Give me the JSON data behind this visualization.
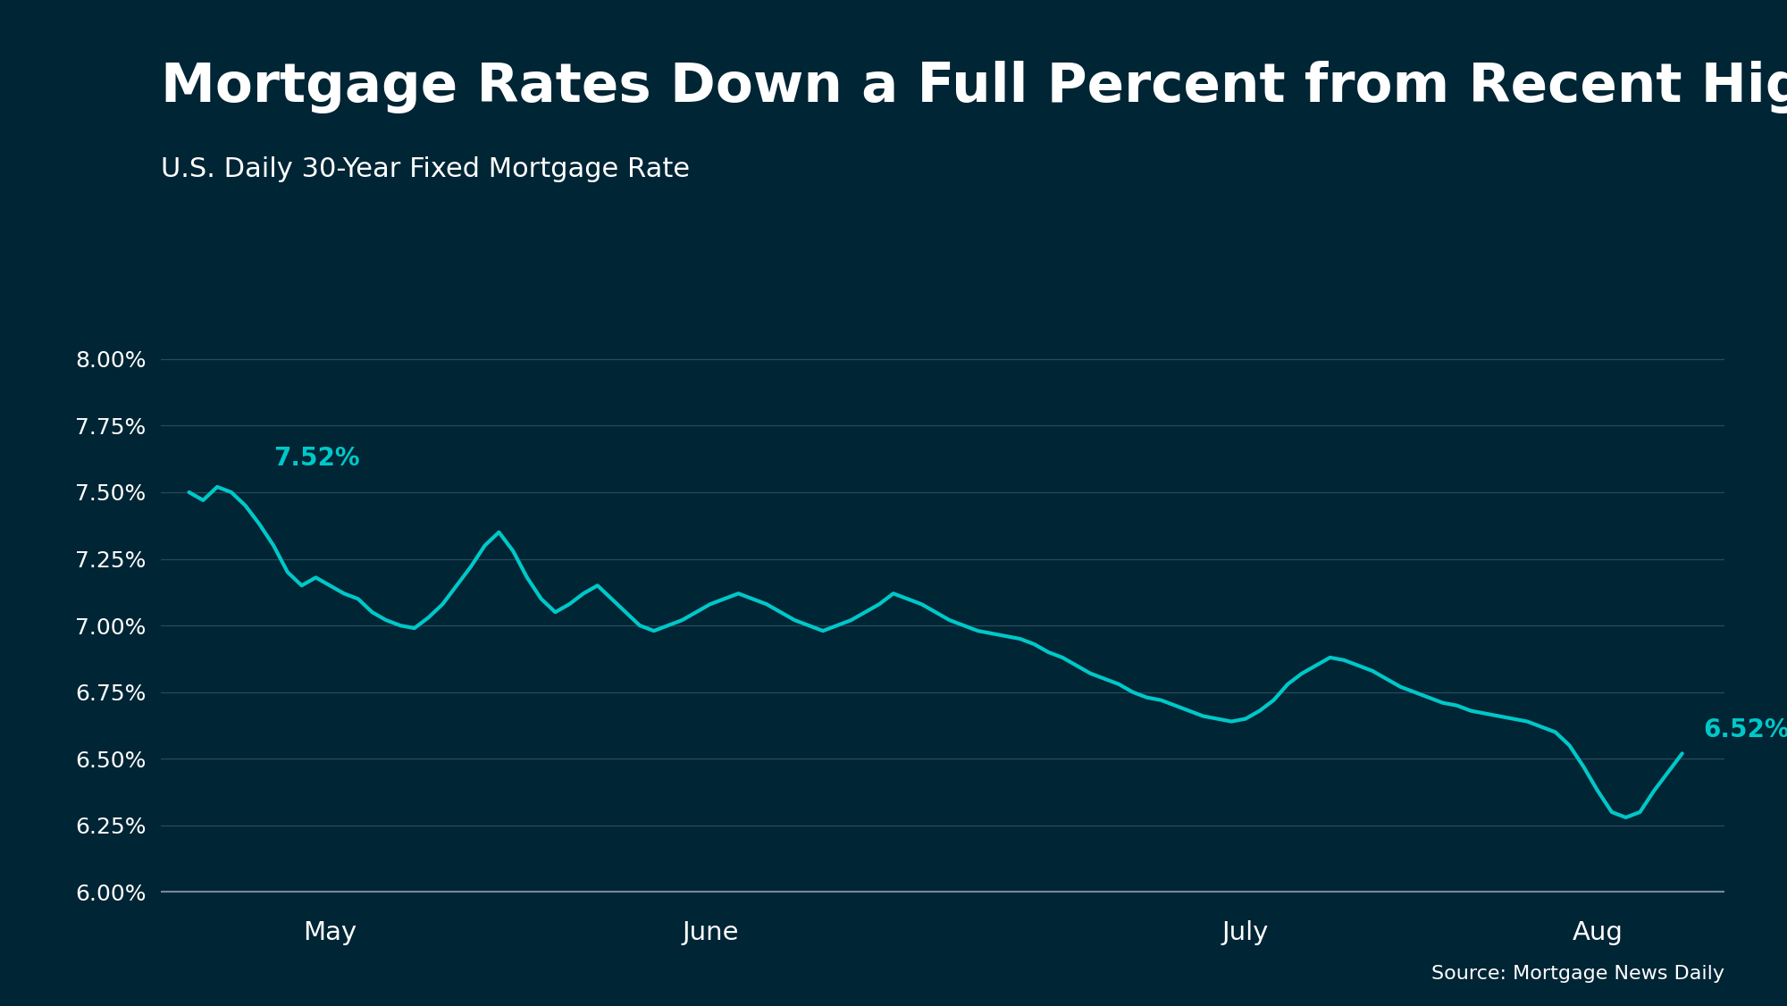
{
  "title": "Mortgage Rates Down a Full Percent from Recent High",
  "subtitle": "U.S. Daily 30-Year Fixed Mortgage Rate",
  "source": "Source: Mortgage News Daily",
  "background_color": "#002535",
  "footer_color": "#1a7a7a",
  "line_color": "#00c8c8",
  "text_color": "#ffffff",
  "grid_color": "#2a4a5a",
  "title_fontsize": 44,
  "subtitle_fontsize": 22,
  "annotation_fontsize": 20,
  "tick_fontsize": 18,
  "ylim": [
    5.95,
    8.12
  ],
  "yticks": [
    6.0,
    6.25,
    6.5,
    6.75,
    7.0,
    7.25,
    7.5,
    7.75,
    8.0
  ],
  "x_labels": [
    "May",
    "June",
    "July",
    "Aug"
  ],
  "start_annotation_label": "7.52%",
  "end_annotation_label": "6.52%",
  "data_y": [
    7.5,
    7.47,
    7.52,
    7.5,
    7.45,
    7.38,
    7.3,
    7.2,
    7.15,
    7.18,
    7.15,
    7.12,
    7.1,
    7.05,
    7.02,
    7.0,
    6.99,
    7.03,
    7.08,
    7.15,
    7.22,
    7.3,
    7.35,
    7.28,
    7.18,
    7.1,
    7.05,
    7.08,
    7.12,
    7.15,
    7.1,
    7.05,
    7.0,
    6.98,
    7.0,
    7.02,
    7.05,
    7.08,
    7.1,
    7.12,
    7.1,
    7.08,
    7.05,
    7.02,
    7.0,
    6.98,
    7.0,
    7.02,
    7.05,
    7.08,
    7.12,
    7.1,
    7.08,
    7.05,
    7.02,
    7.0,
    6.98,
    6.97,
    6.96,
    6.95,
    6.93,
    6.9,
    6.88,
    6.85,
    6.82,
    6.8,
    6.78,
    6.75,
    6.73,
    6.72,
    6.7,
    6.68,
    6.66,
    6.65,
    6.64,
    6.65,
    6.68,
    6.72,
    6.78,
    6.82,
    6.85,
    6.88,
    6.87,
    6.85,
    6.83,
    6.8,
    6.77,
    6.75,
    6.73,
    6.71,
    6.7,
    6.68,
    6.67,
    6.66,
    6.65,
    6.64,
    6.62,
    6.6,
    6.55,
    6.47,
    6.38,
    6.3,
    6.28,
    6.3,
    6.38,
    6.45,
    6.52
  ]
}
